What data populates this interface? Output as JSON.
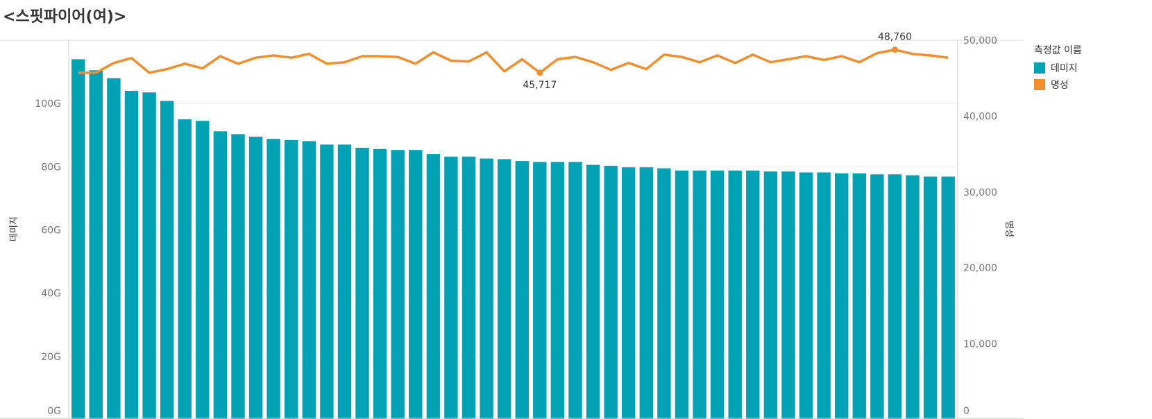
{
  "title": "<스핏파이어(여)>",
  "legend": {
    "title": "측정값 이름",
    "items": [
      {
        "label": "데미지",
        "color": "#00a2b4"
      },
      {
        "label": "명성",
        "color": "#f28e2b"
      }
    ]
  },
  "chart_data": {
    "type": "bar",
    "ylabel_left": "데미지",
    "ylabel_right": "명성",
    "left_axis": {
      "range": [
        0,
        120
      ],
      "unit": "G",
      "ticks": [
        0,
        20,
        40,
        60,
        80,
        100
      ],
      "tick_labels": [
        "0G",
        "20G",
        "40G",
        "60G",
        "80G",
        "100G"
      ]
    },
    "right_axis": {
      "range": [
        0,
        50000
      ],
      "ticks": [
        0,
        10000,
        20000,
        30000,
        40000,
        50000
      ],
      "tick_labels": [
        "0",
        "10,000",
        "20,000",
        "30,000",
        "40,000",
        "50,000"
      ]
    },
    "grid": true,
    "series": [
      {
        "name": "데미지",
        "kind": "bar",
        "axis": "left",
        "values": [
          114.0,
          110.5,
          108.0,
          104.0,
          103.5,
          100.8,
          95.0,
          94.5,
          91.2,
          90.3,
          89.5,
          88.8,
          88.4,
          88.1,
          87.0,
          87.0,
          86.0,
          85.6,
          85.3,
          85.3,
          84.0,
          83.2,
          83.2,
          82.6,
          82.4,
          81.8,
          81.5,
          81.5,
          81.5,
          80.6,
          80.3,
          79.8,
          79.8,
          79.5,
          78.8,
          78.8,
          78.8,
          78.8,
          78.8,
          78.5,
          78.5,
          78.2,
          78.2,
          77.9,
          77.9,
          77.6,
          77.6,
          77.3,
          76.9,
          76.9
        ]
      },
      {
        "name": "명성",
        "kind": "line",
        "axis": "right",
        "values": [
          45717,
          45717,
          47000,
          47650,
          45717,
          46200,
          46900,
          46300,
          47900,
          46900,
          47700,
          48000,
          47700,
          48200,
          46900,
          47100,
          47900,
          47900,
          47800,
          46900,
          48400,
          47300,
          47200,
          48400,
          45900,
          47500,
          45717,
          47500,
          47800,
          47100,
          46100,
          47000,
          46200,
          48100,
          47800,
          47100,
          48000,
          47000,
          48100,
          47100,
          47500,
          47900,
          47400,
          47900,
          47100,
          48300,
          48760,
          48200,
          48000,
          47700
        ]
      }
    ],
    "annotations": [
      {
        "series": "명성",
        "index": 26,
        "label": "45,717"
      },
      {
        "series": "명성",
        "index": 46,
        "label": "48,760"
      }
    ]
  }
}
